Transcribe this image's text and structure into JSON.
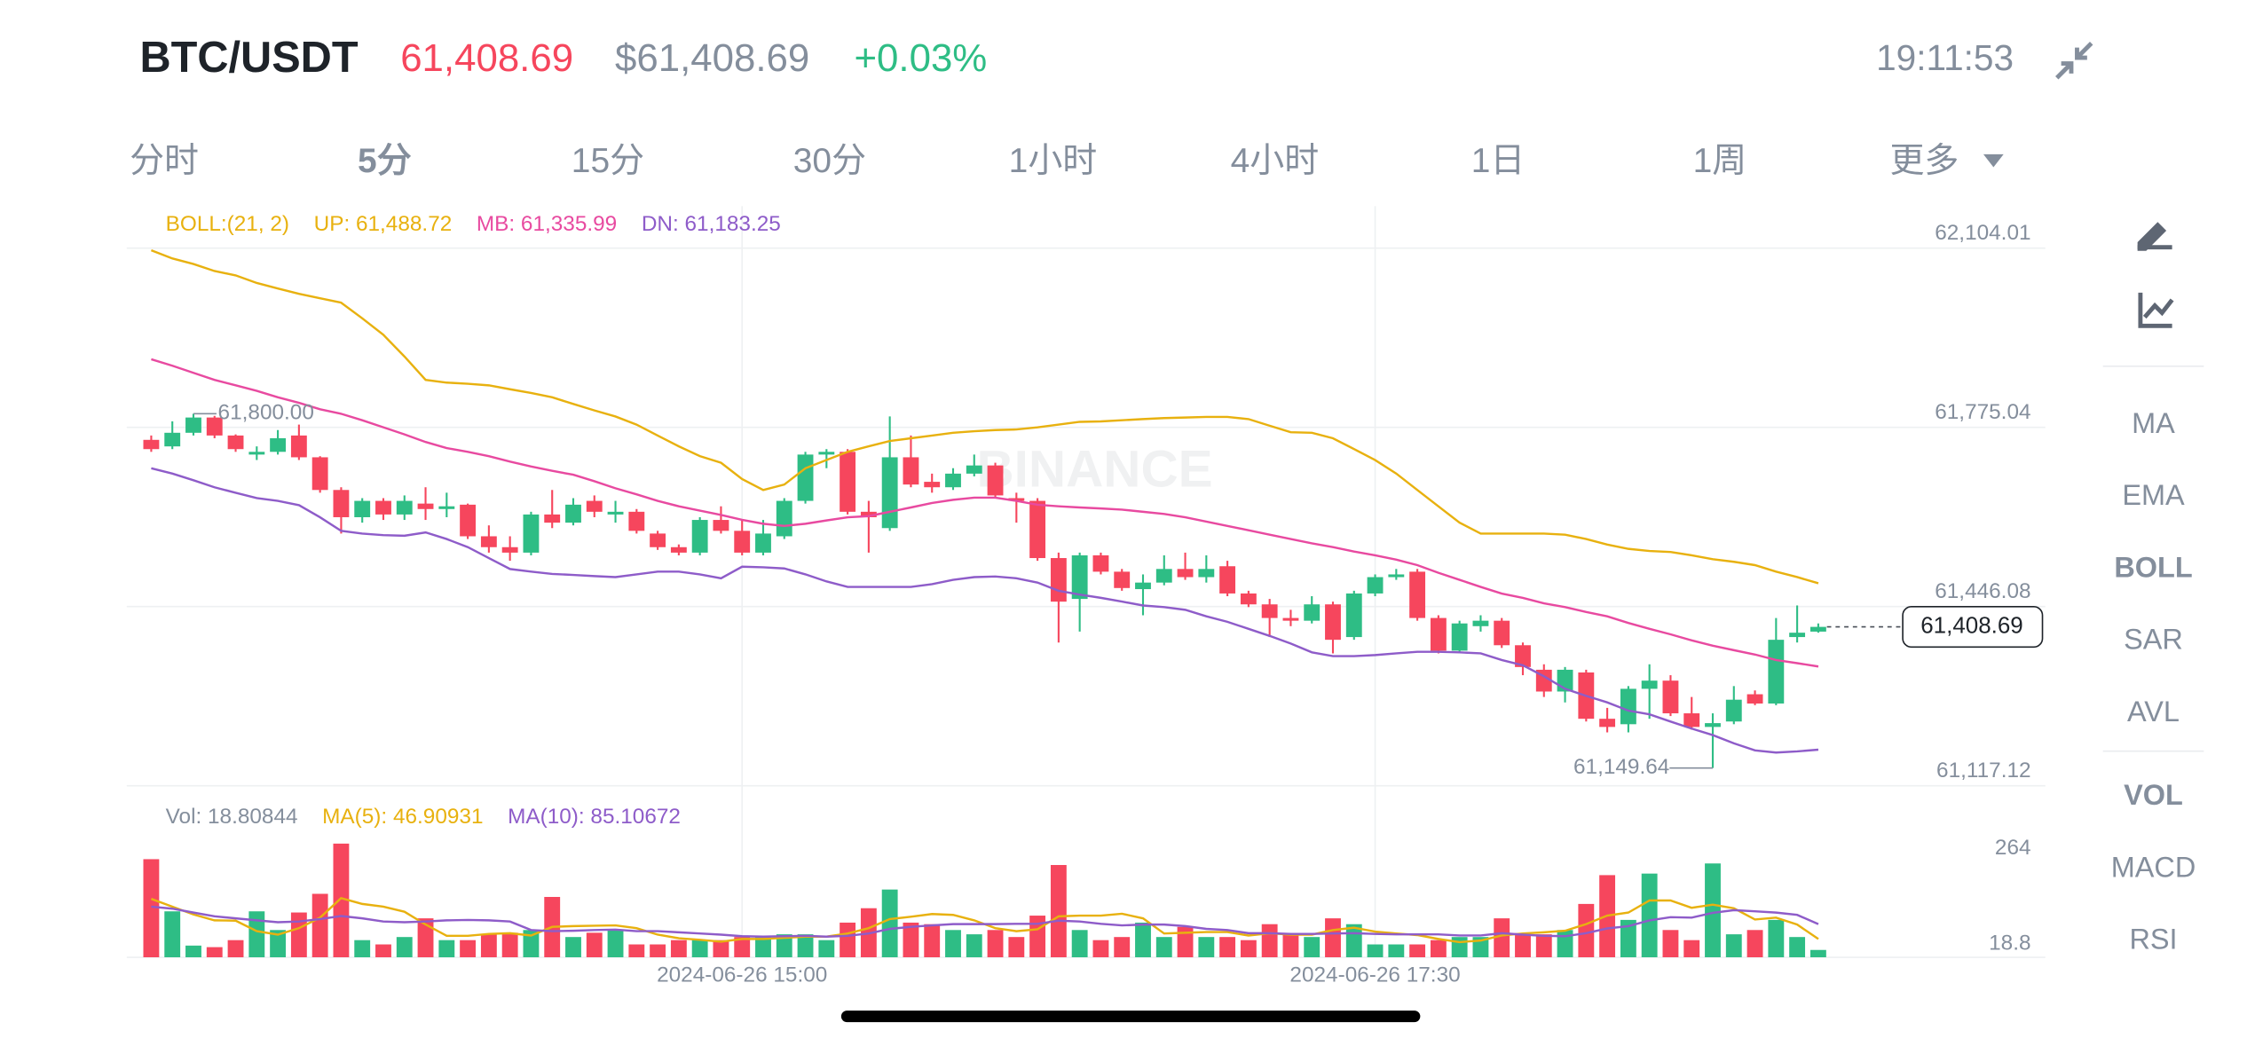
{
  "header": {
    "symbol": "BTC/USDT",
    "price": "61,408.69",
    "price_usd": "$61,408.69",
    "change": "+0.03%",
    "time": "19:11:53"
  },
  "tabs": [
    {
      "label": "分时",
      "active": false
    },
    {
      "label": "5分",
      "active": true
    },
    {
      "label": "15分",
      "active": false
    },
    {
      "label": "30分",
      "active": false
    },
    {
      "label": "1小时",
      "active": false
    },
    {
      "label": "4小时",
      "active": false
    },
    {
      "label": "1日",
      "active": false
    },
    {
      "label": "1周",
      "active": false
    },
    {
      "label": "更多",
      "active": false
    }
  ],
  "sidebar_main": [
    {
      "label": "MA",
      "active": false
    },
    {
      "label": "EMA",
      "active": false
    },
    {
      "label": "BOLL",
      "active": true
    },
    {
      "label": "SAR",
      "active": false
    },
    {
      "label": "AVL",
      "active": false
    }
  ],
  "sidebar_sub": [
    {
      "label": "VOL",
      "active": true
    },
    {
      "label": "MACD",
      "active": false
    },
    {
      "label": "RSI",
      "active": false
    }
  ],
  "chart_data": {
    "type": "candlestick",
    "watermark": "BINANCE",
    "legend": {
      "title": "BOLL:(21, 2)",
      "up": "UP: 61,488.72",
      "mb": "MB: 61,335.99",
      "dn": "DN: 61,183.25"
    },
    "vol_legend": {
      "vol": "Vol: 18.80844",
      "ma5": "MA(5): 46.90931",
      "ma10": "MA(10): 85.10672"
    },
    "high_label": "61,800.00",
    "low_label": "61,149.64",
    "last_price_label": "61,408.69",
    "up_color": "#2ebd85",
    "down_color": "#f6465d",
    "ylim": [
      61117.12,
      62181
    ],
    "yticks": [
      {
        "value": 61117.12,
        "label": "61,117.12"
      },
      {
        "value": 61446.08,
        "label": "61,446.08"
      },
      {
        "value": 61775.04,
        "label": "61,775.04"
      },
      {
        "value": 62104.01,
        "label": "62,104.01"
      }
    ],
    "vol_ylim": [
      0,
      300
    ],
    "vol_yticks": [
      18.8,
      264
    ],
    "xticks": [
      {
        "value": 28,
        "label": "2024-06-26 15:00"
      },
      {
        "value": 58,
        "label": "2024-06-26 17:30"
      }
    ],
    "open": [
      61752,
      61740,
      61765,
      61793,
      61760,
      61725,
      61730,
      61760,
      61720,
      61660,
      61610,
      61640,
      61615,
      61635,
      61625,
      61633,
      61575,
      61555,
      61545,
      61615,
      61600,
      61640,
      61615,
      61620,
      61580,
      61555,
      61545,
      61605,
      61585,
      61545,
      61575,
      61640,
      61725,
      61730,
      61620,
      61590,
      61720,
      61675,
      61665,
      61690,
      61705,
      61645,
      61640,
      61535,
      61460,
      61540,
      61510,
      61478,
      61490,
      61515,
      61500,
      61520,
      61470,
      61450,
      61425,
      61420,
      61450,
      61390,
      61470,
      61500,
      61510,
      61425,
      61365,
      61410,
      61420,
      61375,
      61330,
      61290,
      61325,
      61240,
      61230,
      61295,
      61310,
      61250,
      61225,
      61235,
      61285,
      61268,
      61390,
      61400
    ],
    "high": [
      61760,
      61786,
      61800,
      61796,
      61762,
      61740,
      61770,
      61780,
      61722,
      61665,
      61645,
      61645,
      61650,
      61665,
      61655,
      61635,
      61595,
      61575,
      61620,
      61660,
      61645,
      61650,
      61640,
      61625,
      61585,
      61560,
      61610,
      61630,
      61605,
      61605,
      61645,
      61730,
      61735,
      61735,
      61640,
      61795,
      61760,
      61690,
      61700,
      61725,
      61710,
      61655,
      61645,
      61545,
      61545,
      61545,
      61515,
      61505,
      61540,
      61545,
      61540,
      61530,
      61475,
      61460,
      61440,
      61465,
      61455,
      61475,
      61505,
      61515,
      61515,
      61430,
      61420,
      61430,
      61425,
      61380,
      61340,
      61335,
      61330,
      61260,
      61300,
      61340,
      61320,
      61280,
      61250,
      61300,
      61292,
      61425,
      61448,
      61415
    ],
    "low": [
      61730,
      61735,
      61760,
      61755,
      61730,
      61715,
      61725,
      61715,
      61655,
      61580,
      61600,
      61605,
      61605,
      61605,
      61610,
      61570,
      61545,
      61530,
      61540,
      61590,
      61595,
      61610,
      61600,
      61580,
      61550,
      61540,
      61540,
      61580,
      61540,
      61540,
      61570,
      61635,
      61700,
      61615,
      61545,
      61585,
      61665,
      61655,
      61660,
      61685,
      61645,
      61600,
      61530,
      61380,
      61400,
      61505,
      61475,
      61430,
      61485,
      61495,
      61490,
      61465,
      61445,
      61390,
      61410,
      61415,
      61360,
      61385,
      61465,
      61495,
      61420,
      61360,
      61360,
      61400,
      61370,
      61320,
      61280,
      61270,
      61235,
      61215,
      61215,
      61240,
      61245,
      61220,
      61149.64,
      61230,
      61265,
      61265,
      61380,
      61398
    ],
    "close": [
      61735,
      61765,
      61793,
      61760,
      61735,
      61730,
      61755,
      61720,
      61660,
      61610,
      61640,
      61615,
      61640,
      61625,
      61630,
      61575,
      61555,
      61545,
      61615,
      61600,
      61633,
      61620,
      61620,
      61585,
      61555,
      61545,
      61605,
      61585,
      61545,
      61580,
      61640,
      61725,
      61730,
      61620,
      61610,
      61720,
      61670,
      61665,
      61690,
      61705,
      61650,
      61640,
      61535,
      61455,
      61540,
      61510,
      61480,
      61490,
      61515,
      61500,
      61515,
      61470,
      61450,
      61425,
      61420,
      61450,
      61385,
      61470,
      61500,
      61505,
      61425,
      61365,
      61415,
      61420,
      61375,
      61335,
      61290,
      61330,
      61240,
      61225,
      61295,
      61310,
      61250,
      61225,
      61232,
      61275,
      61268,
      61385,
      61398,
      61408.69
    ],
    "volume": [
      252,
      118,
      30,
      26,
      44,
      118,
      70,
      115,
      163,
      292,
      44,
      33,
      52,
      100,
      44,
      44,
      59,
      63,
      70,
      155,
      52,
      63,
      70,
      33,
      33,
      44,
      44,
      44,
      52,
      52,
      59,
      59,
      44,
      89,
      126,
      174,
      89,
      85,
      70,
      59,
      70,
      52,
      107,
      237,
      70,
      44,
      52,
      89,
      52,
      78,
      52,
      52,
      44,
      85,
      59,
      52,
      100,
      85,
      33,
      33,
      33,
      44,
      52,
      52,
      100,
      59,
      59,
      70,
      137,
      211,
      96,
      215,
      70,
      44,
      241,
      59,
      70,
      96,
      52,
      18.80844
    ],
    "lines": [
      {
        "name": "UP",
        "color": "#e8b10f",
        "panel": "price",
        "values": [
          62100,
          62085,
          62075,
          62062,
          62054,
          62040,
          62030,
          62020,
          62012,
          62004,
          61975,
          61945,
          61905,
          61862,
          61857,
          61855,
          61852,
          61845,
          61838,
          61830,
          61818,
          61806,
          61795,
          61780,
          61760,
          61740,
          61722,
          61710,
          61680,
          61660,
          61670,
          61700,
          61715,
          61730,
          61740,
          61750,
          61755,
          61760,
          61765,
          61768,
          61770,
          61771,
          61775,
          61780,
          61785,
          61786,
          61788,
          61790,
          61792,
          61793,
          61794,
          61794,
          61790,
          61778,
          61766,
          61765,
          61755,
          61735,
          61715,
          61690,
          61660,
          61630,
          61600,
          61580,
          61580,
          61580,
          61580,
          61578,
          61570,
          61560,
          61552,
          61548,
          61546,
          61540,
          61533,
          61528,
          61522,
          61510,
          61500,
          61488.72
        ]
      },
      {
        "name": "MB",
        "color": "#e84aa0",
        "panel": "price",
        "values": [
          61900,
          61888,
          61875,
          61862,
          61852,
          61842,
          61830,
          61820,
          61808,
          61800,
          61788,
          61775,
          61762,
          61748,
          61737,
          61730,
          61722,
          61712,
          61703,
          61695,
          61688,
          61676,
          61663,
          61652,
          61640,
          61630,
          61622,
          61614,
          61605,
          61598,
          61594,
          61598,
          61604,
          61610,
          61612,
          61620,
          61628,
          61636,
          61642,
          61646,
          61646,
          61640,
          61633,
          61630,
          61628,
          61626,
          61624,
          61620,
          61616,
          61610,
          61602,
          61594,
          61586,
          61578,
          61570,
          61562,
          61555,
          61547,
          61540,
          61532,
          61522,
          61508,
          61495,
          61482,
          61470,
          61462,
          61452,
          61445,
          61436,
          61428,
          61416,
          61405,
          61395,
          61384,
          61374,
          61366,
          61358,
          61348,
          61342,
          61335.99
        ]
      },
      {
        "name": "DN",
        "color": "#8e5cc9",
        "panel": "price",
        "values": [
          61700,
          61690,
          61678,
          61665,
          61655,
          61645,
          61640,
          61632,
          61610,
          61585,
          61580,
          61577,
          61576,
          61582,
          61570,
          61555,
          61535,
          61515,
          61510,
          61506,
          61504,
          61502,
          61500,
          61505,
          61510,
          61510,
          61505,
          61498,
          61519,
          61518,
          61516,
          61505,
          61492,
          61482,
          61482,
          61482,
          61482,
          61487,
          61495,
          61500,
          61501,
          61498,
          61490,
          61475,
          61468,
          61462,
          61455,
          61448,
          61445,
          61440,
          61428,
          61418,
          61405,
          61392,
          61378,
          61362,
          61355,
          61355,
          61357,
          61360,
          61363,
          61363,
          61362,
          61360,
          61348,
          61338,
          61318,
          61295,
          61282,
          61270,
          61255,
          61248,
          61235,
          61222,
          61210,
          61195,
          61182,
          61178,
          61180,
          61183.25
        ]
      },
      {
        "name": "MA(5)",
        "color": "#e8b10f",
        "panel": "vol",
        "values": [
          150,
          130,
          110,
          95,
          94,
          67,
          58,
          75,
          102,
          152,
          137,
          130,
          117,
          84,
          55,
          55,
          60,
          62,
          56,
          78,
          80,
          81,
          82,
          75,
          58,
          49,
          45,
          40,
          47,
          47,
          50,
          53,
          53,
          61,
          75,
          98,
          104,
          111,
          109,
          95,
          75,
          67,
          72,
          105,
          107,
          107,
          112,
          100,
          61,
          63,
          65,
          65,
          56,
          62,
          58,
          58,
          70,
          76,
          66,
          61,
          57,
          47,
          39,
          43,
          56,
          61,
          64,
          68,
          85,
          107,
          115,
          146,
          146,
          127,
          135,
          126,
          97,
          102,
          84,
          46.90931
        ]
      },
      {
        "name": "MA(10)",
        "color": "#8e5cc9",
        "panel": "vol",
        "values": [
          130,
          125,
          115,
          105,
          100,
          95,
          90,
          92,
          98,
          106,
          100,
          92,
          90,
          92,
          95,
          96,
          95,
          92,
          70,
          67,
          68,
          70,
          71,
          67,
          67,
          64,
          61,
          58,
          54,
          53,
          54,
          55,
          53,
          55,
          61,
          73,
          78,
          82,
          85,
          85,
          85,
          86,
          86,
          94,
          92,
          86,
          82,
          84,
          84,
          80,
          73,
          70,
          62,
          62,
          60,
          60,
          61,
          62,
          60,
          59,
          59,
          59,
          56,
          56,
          62,
          58,
          55,
          54,
          62,
          74,
          80,
          95,
          103,
          102,
          114,
          121,
          118,
          115,
          109,
          85.10672
        ]
      }
    ]
  }
}
